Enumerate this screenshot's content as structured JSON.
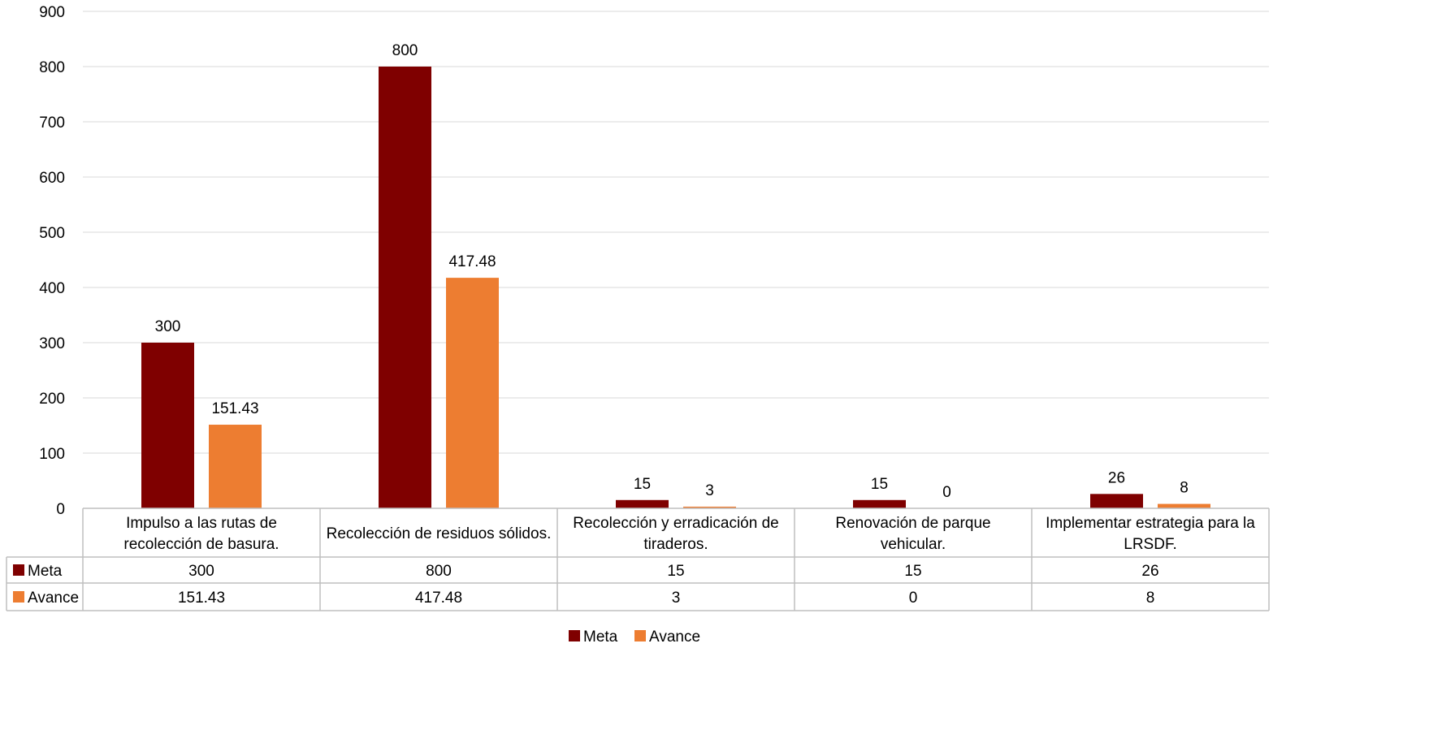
{
  "chart_data": {
    "type": "bar",
    "categories": [
      [
        "Impulso a las rutas de",
        "recolección de basura."
      ],
      [
        "Recolección de residuos sólidos."
      ],
      [
        "Recolección y erradicación de",
        "tiraderos."
      ],
      [
        "Renovación de parque",
        "vehicular."
      ],
      [
        "Implementar estrategia para la",
        "LRSDF."
      ]
    ],
    "series": [
      {
        "name": "Meta",
        "color": "#7f0000",
        "values": [
          300,
          800,
          15,
          15,
          26
        ],
        "labels": [
          "300",
          "800",
          "15",
          "15",
          "26"
        ]
      },
      {
        "name": "Avance",
        "color": "#ed7d31",
        "values": [
          151.43,
          417.48,
          3,
          0,
          8
        ],
        "labels": [
          "151.43",
          "417.48",
          "3",
          "0",
          "8"
        ]
      }
    ],
    "ylim": [
      0,
      900
    ],
    "yticks": [
      "0",
      "100",
      "200",
      "300",
      "400",
      "500",
      "600",
      "700",
      "800",
      "900"
    ],
    "grid": true,
    "data_table": true,
    "legend_position": "bottom",
    "title": "",
    "xlabel": "",
    "ylabel": ""
  }
}
